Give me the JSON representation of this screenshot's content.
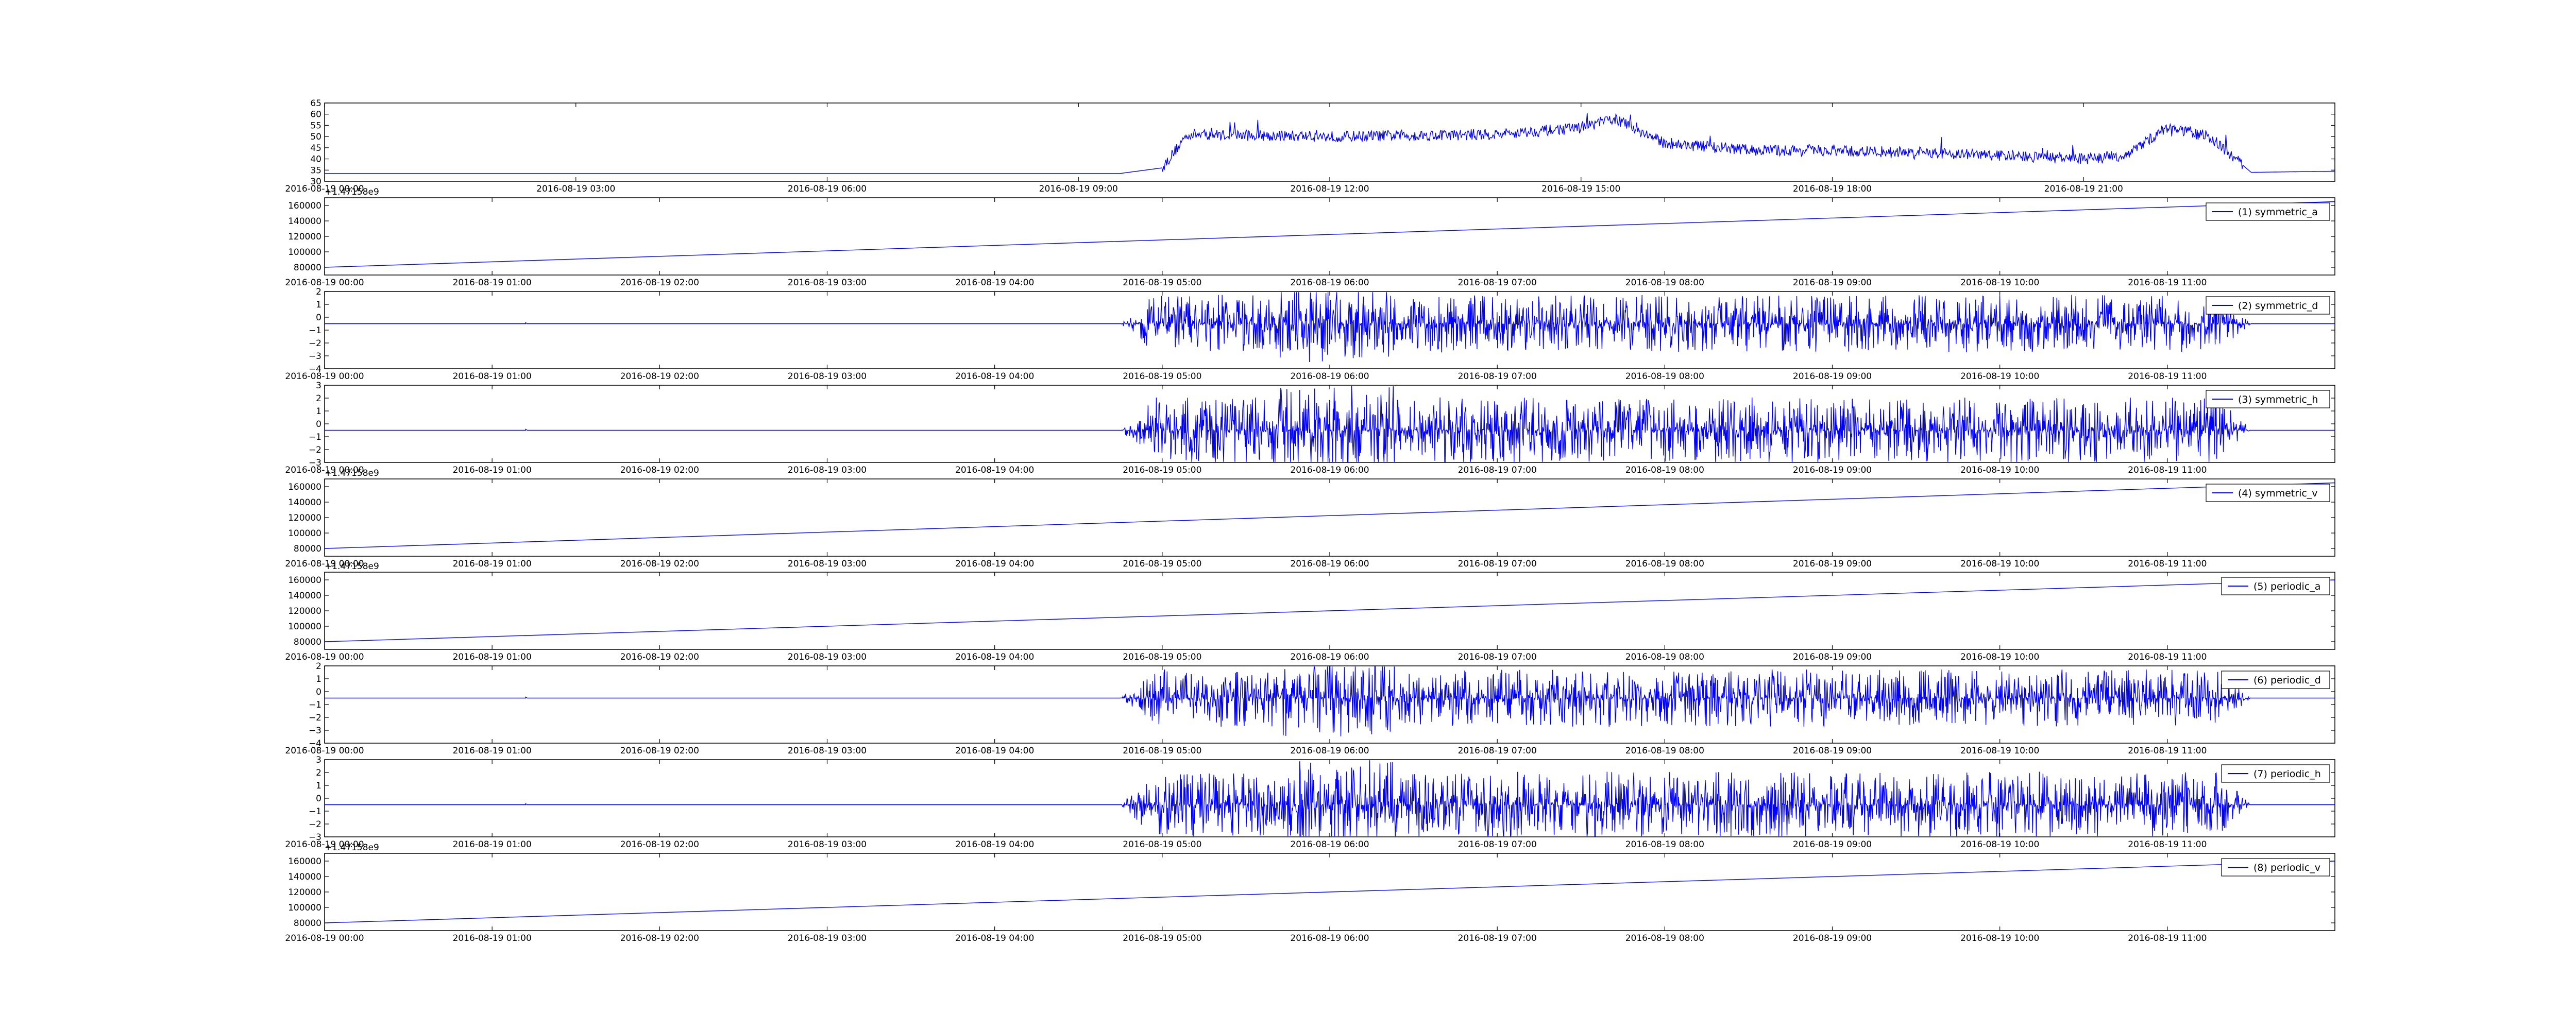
{
  "chart_data": [
    {
      "type": "line",
      "legend": "",
      "x_kind": "time",
      "x_start": "2016-08-19 00:00",
      "x_end": "2016-08-20 00:00",
      "xtick_labels": [
        "2016-08-19 00:00",
        "2016-08-19 03:00",
        "2016-08-19 06:00",
        "2016-08-19 09:00",
        "2016-08-19 12:00",
        "2016-08-19 15:00",
        "2016-08-19 18:00",
        "2016-08-19 21:00"
      ],
      "ylim": [
        30,
        65
      ],
      "ytick_labels": [
        "30",
        "35",
        "40",
        "45",
        "50",
        "55",
        "60",
        "65"
      ],
      "offset_text": "",
      "pattern": "activity",
      "samples_x_hours": [
        0,
        9.5,
        10.0,
        10.3,
        12,
        14,
        15.0,
        15.4,
        16.0,
        17,
        19,
        21,
        21.5,
        22.0,
        22.5,
        23.0,
        24
      ],
      "samples_y": [
        33.5,
        33.5,
        36,
        51,
        50,
        51,
        54,
        58,
        47,
        44,
        43,
        40,
        41.5,
        54,
        50,
        34,
        34.5
      ]
    },
    {
      "type": "line",
      "legend": "(1) symmetric_a",
      "x_kind": "linear",
      "x_start": "2016-08-19 00:00",
      "x_end": "2016-08-19 12:00",
      "xtick_labels": [
        "2016-08-19 00:00",
        "2016-08-19 01:00",
        "2016-08-19 02:00",
        "2016-08-19 03:00",
        "2016-08-19 04:00",
        "2016-08-19 05:00",
        "2016-08-19 06:00",
        "2016-08-19 07:00",
        "2016-08-19 08:00",
        "2016-08-19 09:00",
        "2016-08-19 10:00",
        "2016-08-19 11:00"
      ],
      "ylim": [
        70000,
        170000
      ],
      "ytick_labels": [
        "80000",
        "100000",
        "120000",
        "140000",
        "160000"
      ],
      "offset_text": "+1.47158e9",
      "pattern": "ramp",
      "y_start": 80000,
      "y_end": 165000
    },
    {
      "type": "line",
      "legend": "(2) symmetric_d",
      "x_kind": "linear",
      "x_start": "2016-08-19 00:00",
      "x_end": "2016-08-19 12:00",
      "xtick_labels": [
        "2016-08-19 00:00",
        "2016-08-19 01:00",
        "2016-08-19 02:00",
        "2016-08-19 03:00",
        "2016-08-19 04:00",
        "2016-08-19 05:00",
        "2016-08-19 06:00",
        "2016-08-19 07:00",
        "2016-08-19 08:00",
        "2016-08-19 09:00",
        "2016-08-19 10:00",
        "2016-08-19 11:00"
      ],
      "ylim": [
        -4,
        2
      ],
      "ytick_labels": [
        "−4",
        "−3",
        "−2",
        "−1",
        "0",
        "1",
        "2"
      ],
      "offset_text": "",
      "pattern": "noise",
      "baseline": -0.5,
      "noise_start_hour": 4.75,
      "noise_end_hour": 11.5,
      "amplitude": 1.4
    },
    {
      "type": "line",
      "legend": "(3) symmetric_h",
      "x_kind": "linear",
      "x_start": "2016-08-19 00:00",
      "x_end": "2016-08-19 12:00",
      "xtick_labels": [
        "2016-08-19 00:00",
        "2016-08-19 01:00",
        "2016-08-19 02:00",
        "2016-08-19 03:00",
        "2016-08-19 04:00",
        "2016-08-19 05:00",
        "2016-08-19 06:00",
        "2016-08-19 07:00",
        "2016-08-19 08:00",
        "2016-08-19 09:00",
        "2016-08-19 10:00",
        "2016-08-19 11:00"
      ],
      "ylim": [
        -3,
        3
      ],
      "ytick_labels": [
        "−3",
        "−2",
        "−1",
        "0",
        "1",
        "2",
        "3"
      ],
      "offset_text": "",
      "pattern": "noise",
      "baseline": -0.5,
      "noise_start_hour": 4.75,
      "noise_end_hour": 11.5,
      "amplitude": 1.6
    },
    {
      "type": "line",
      "legend": "(4) symmetric_v",
      "x_kind": "linear",
      "x_start": "2016-08-19 00:00",
      "x_end": "2016-08-19 12:00",
      "xtick_labels": [
        "2016-08-19 00:00",
        "2016-08-19 01:00",
        "2016-08-19 02:00",
        "2016-08-19 03:00",
        "2016-08-19 04:00",
        "2016-08-19 05:00",
        "2016-08-19 06:00",
        "2016-08-19 07:00",
        "2016-08-19 08:00",
        "2016-08-19 09:00",
        "2016-08-19 10:00",
        "2016-08-19 11:00"
      ],
      "ylim": [
        70000,
        170000
      ],
      "ytick_labels": [
        "80000",
        "100000",
        "120000",
        "140000",
        "160000"
      ],
      "offset_text": "+1.47158e9",
      "pattern": "ramp",
      "y_start": 80000,
      "y_end": 165000
    },
    {
      "type": "line",
      "legend": "(5) periodic_a",
      "x_kind": "linear",
      "x_start": "2016-08-19 00:00",
      "x_end": "2016-08-19 12:00",
      "xtick_labels": [
        "2016-08-19 00:00",
        "2016-08-19 01:00",
        "2016-08-19 02:00",
        "2016-08-19 03:00",
        "2016-08-19 04:00",
        "2016-08-19 05:00",
        "2016-08-19 06:00",
        "2016-08-19 07:00",
        "2016-08-19 08:00",
        "2016-08-19 09:00",
        "2016-08-19 10:00",
        "2016-08-19 11:00"
      ],
      "ylim": [
        70000,
        170000
      ],
      "ytick_labels": [
        "80000",
        "100000",
        "120000",
        "140000",
        "160000"
      ],
      "offset_text": "+1.47158e9",
      "pattern": "ramp",
      "y_start": 80000,
      "y_end": 160000
    },
    {
      "type": "line",
      "legend": "(6) periodic_d",
      "x_kind": "linear",
      "x_start": "2016-08-19 00:00",
      "x_end": "2016-08-19 12:00",
      "xtick_labels": [
        "2016-08-19 00:00",
        "2016-08-19 01:00",
        "2016-08-19 02:00",
        "2016-08-19 03:00",
        "2016-08-19 04:00",
        "2016-08-19 05:00",
        "2016-08-19 06:00",
        "2016-08-19 07:00",
        "2016-08-19 08:00",
        "2016-08-19 09:00",
        "2016-08-19 10:00",
        "2016-08-19 11:00"
      ],
      "ylim": [
        -4,
        2
      ],
      "ytick_labels": [
        "−4",
        "−3",
        "−2",
        "−1",
        "0",
        "1",
        "2"
      ],
      "offset_text": "",
      "pattern": "noise",
      "baseline": -0.5,
      "noise_start_hour": 4.75,
      "noise_end_hour": 11.5,
      "amplitude": 1.4
    },
    {
      "type": "line",
      "legend": "(7) periodic_h",
      "x_kind": "linear",
      "x_start": "2016-08-19 00:00",
      "x_end": "2016-08-19 12:00",
      "xtick_labels": [
        "2016-08-19 00:00",
        "2016-08-19 01:00",
        "2016-08-19 02:00",
        "2016-08-19 03:00",
        "2016-08-19 04:00",
        "2016-08-19 05:00",
        "2016-08-19 06:00",
        "2016-08-19 07:00",
        "2016-08-19 08:00",
        "2016-08-19 09:00",
        "2016-08-19 10:00",
        "2016-08-19 11:00"
      ],
      "ylim": [
        -3,
        3
      ],
      "ytick_labels": [
        "−3",
        "−2",
        "−1",
        "0",
        "1",
        "2",
        "3"
      ],
      "offset_text": "",
      "pattern": "noise",
      "baseline": -0.5,
      "noise_start_hour": 4.75,
      "noise_end_hour": 11.5,
      "amplitude": 1.6
    },
    {
      "type": "line",
      "legend": "(8) periodic_v",
      "x_kind": "linear",
      "x_start": "2016-08-19 00:00",
      "x_end": "2016-08-19 12:00",
      "xtick_labels": [
        "2016-08-19 00:00",
        "2016-08-19 01:00",
        "2016-08-19 02:00",
        "2016-08-19 03:00",
        "2016-08-19 04:00",
        "2016-08-19 05:00",
        "2016-08-19 06:00",
        "2016-08-19 07:00",
        "2016-08-19 08:00",
        "2016-08-19 09:00",
        "2016-08-19 10:00",
        "2016-08-19 11:00"
      ],
      "ylim": [
        70000,
        170000
      ],
      "ytick_labels": [
        "80000",
        "100000",
        "120000",
        "140000",
        "160000"
      ],
      "offset_text": "+1.47158e9",
      "pattern": "ramp",
      "y_start": 80000,
      "y_end": 160000
    }
  ],
  "colors": {
    "line": "#0000ff",
    "axes": "#000000",
    "background": "#ffffff"
  }
}
